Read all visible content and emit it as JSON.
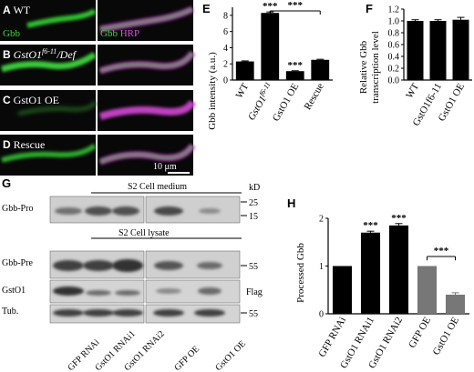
{
  "panel_letters": [
    "A",
    "B",
    "C",
    "D",
    "E",
    "F",
    "G",
    "H"
  ],
  "microscopy": {
    "rows": [
      {
        "letter": "A",
        "label": "WT"
      },
      {
        "letter": "B",
        "label": "GstO1",
        "label_sup": "f6-11",
        "label_suffix": "/Def"
      },
      {
        "letter": "C",
        "label": "GstO1 OE"
      },
      {
        "letter": "D",
        "label": "Rescue"
      }
    ],
    "merge_label_gbb": "Gbb",
    "merge_label_hrp": "HRP",
    "scale_bar": "10 μm",
    "colors": {
      "gbb": "#3bd43b",
      "hrp": "#c23ac2"
    }
  },
  "blot": {
    "group_medium": "S2 Cell medium",
    "group_lysate": "S2 Cell lysate",
    "unit": "kD",
    "row_labels": [
      "Gbb-Pro",
      "Gbb-Pre",
      "GstO1",
      "Tub."
    ],
    "markers": {
      "r1": [
        "25",
        "15"
      ],
      "r2": [
        "55"
      ],
      "r3": [
        "Flag"
      ],
      "r4": [
        "55"
      ]
    },
    "lanes": [
      "GFP RNAi",
      "GstO1 RNAi1",
      "GstO1 RNAi2",
      "GFP OE",
      "GstO1 OE"
    ]
  },
  "chart_data": [
    {
      "panel": "E",
      "type": "bar",
      "ylabel": "Gbb intensity (a.u.)",
      "categories": [
        "WT",
        "GstO1f6-11",
        "GstO1 OE",
        "Rescue"
      ],
      "category_sup": [
        "",
        "f6-11",
        "",
        ""
      ],
      "values": [
        2.3,
        8.3,
        1.1,
        2.5
      ],
      "errors": [
        0.07,
        0.12,
        0.05,
        0.07
      ],
      "ylim": [
        0,
        9
      ],
      "yticks": [
        "0",
        "2",
        "4",
        "6",
        "8"
      ],
      "annotations": [
        "***",
        "***",
        "***"
      ]
    },
    {
      "panel": "F",
      "type": "bar",
      "ylabel": "Relative Gbb transcription level",
      "categories": [
        "WT",
        "GstO1f6-11",
        "GstO1 OE"
      ],
      "values": [
        1.0,
        1.0,
        1.02
      ],
      "errors": [
        0.02,
        0.02,
        0.04
      ],
      "ylim": [
        0,
        1.2
      ],
      "yticks": [
        "0.0",
        "0.2",
        "0.4",
        "0.6",
        "0.8",
        "1.0",
        "1.2"
      ]
    },
    {
      "panel": "H",
      "type": "bar",
      "ylabel": "Processed Gbb",
      "categories": [
        "GFP RNAi",
        "GstO1 RNAi1",
        "GstO1 RNAi2",
        "GFP OE",
        "GstO1 OE"
      ],
      "values": [
        1.0,
        1.7,
        1.85,
        1.0,
        0.4
      ],
      "errors": [
        0,
        0.03,
        0.04,
        0,
        0.04
      ],
      "ylim": [
        0,
        2
      ],
      "yticks": [
        "0",
        "1",
        "2"
      ],
      "annotations": [
        "***",
        "***",
        "***"
      ],
      "colors": [
        "#000000",
        "#000000",
        "#000000",
        "#777777",
        "#777777"
      ]
    }
  ]
}
